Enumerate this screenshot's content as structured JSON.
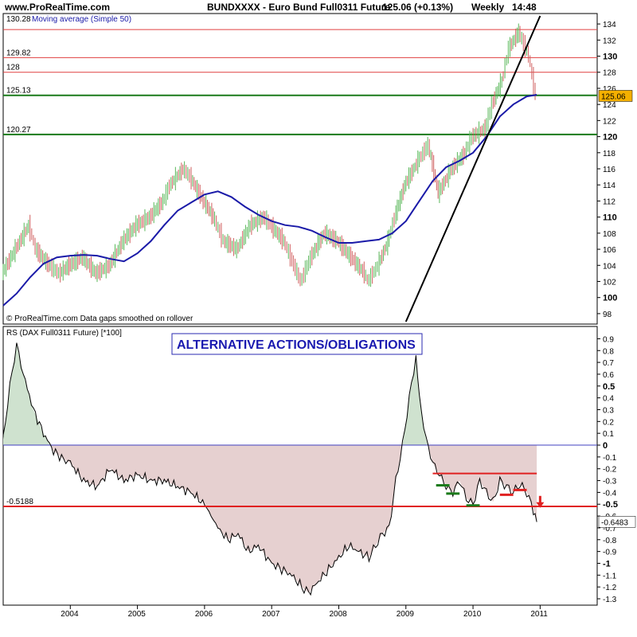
{
  "header": {
    "site": "www.ProRealTime.com",
    "title": "BUNDXXXX - Euro Bund Full0311 Future",
    "quote": "125.06 (+0.13%)",
    "period": "Weekly",
    "time": "14:48"
  },
  "chart_data": [
    {
      "type": "line",
      "panel": "price",
      "subtitle_prefix": "130.28",
      "indicator_label": "Moving average (Simple 50)",
      "footer_note": "© ProRealTime.com Data gaps smoothed on rollover",
      "ylim": [
        97,
        135
      ],
      "y_ticks": [
        98,
        100,
        102,
        104,
        106,
        108,
        110,
        112,
        114,
        116,
        118,
        120,
        122,
        124,
        126,
        128,
        130,
        132,
        134
      ],
      "y_ticks_bold": [
        100,
        110,
        120,
        130
      ],
      "current_price": "125.06",
      "hlines": [
        {
          "value": 133.3,
          "label": "",
          "color": "#e04040",
          "width": 1
        },
        {
          "value": 129.82,
          "label": "129.82",
          "color": "#e04040",
          "width": 1
        },
        {
          "value": 128,
          "label": "128",
          "color": "#e04040",
          "width": 1
        },
        {
          "value": 125.13,
          "label": "125.13",
          "color": "#1a7a1a",
          "width": 2
        },
        {
          "value": 120.27,
          "label": "120.27",
          "color": "#1a7a1a",
          "width": 2
        }
      ],
      "trendline": {
        "points": [
          [
            2009.0,
            97
          ],
          [
            2011.0,
            135
          ]
        ],
        "color": "#000000"
      },
      "series": [
        {
          "kind": "price",
          "color_up": "#5ab85a",
          "color_down": "#d06060",
          "x": [
            2003.0,
            2003.2,
            2003.4,
            2003.5,
            2003.7,
            2003.85,
            2004.0,
            2004.2,
            2004.4,
            2004.6,
            2004.8,
            2005.0,
            2005.2,
            2005.4,
            2005.5,
            2005.7,
            2005.8,
            2006.0,
            2006.15,
            2006.3,
            2006.5,
            2006.7,
            2006.9,
            2007.0,
            2007.2,
            2007.35,
            2007.45,
            2007.6,
            2007.8,
            2008.0,
            2008.2,
            2008.4,
            2008.45,
            2008.6,
            2008.75,
            2008.85,
            2009.0,
            2009.2,
            2009.35,
            2009.5,
            2009.7,
            2009.9,
            2010.0,
            2010.2,
            2010.3,
            2010.45,
            2010.55,
            2010.7,
            2010.85,
            2010.95
          ],
          "values": [
            103,
            106,
            109,
            106,
            104,
            103,
            104,
            105,
            103,
            104,
            107,
            109,
            110,
            112,
            114,
            116,
            115,
            112,
            110,
            107,
            106,
            109,
            110,
            109,
            107,
            104,
            102,
            105,
            108,
            107,
            105,
            103,
            102,
            104,
            107,
            110,
            114,
            117,
            119,
            113,
            116,
            118,
            120,
            121,
            124,
            127,
            131,
            133,
            130,
            125
          ]
        },
        {
          "kind": "ma",
          "name": "Moving average (Simple 50)",
          "color": "#1a1aa8",
          "x": [
            2003.0,
            2003.2,
            2003.4,
            2003.6,
            2003.8,
            2004.0,
            2004.2,
            2004.4,
            2004.6,
            2004.8,
            2005.0,
            2005.2,
            2005.4,
            2005.6,
            2005.8,
            2006.0,
            2006.2,
            2006.4,
            2006.6,
            2006.8,
            2007.0,
            2007.2,
            2007.4,
            2007.6,
            2007.8,
            2008.0,
            2008.2,
            2008.4,
            2008.6,
            2008.8,
            2009.0,
            2009.2,
            2009.4,
            2009.6,
            2009.8,
            2010.0,
            2010.2,
            2010.4,
            2010.6,
            2010.8,
            2010.95
          ],
          "values": [
            99,
            100.5,
            102.5,
            104.2,
            105,
            105.2,
            105.3,
            105.2,
            104.8,
            104.5,
            105.5,
            107,
            109,
            110.8,
            111.8,
            112.8,
            113.2,
            112.5,
            111.3,
            110.3,
            109.5,
            109,
            108.8,
            108.3,
            107.5,
            106.8,
            106.8,
            107,
            107.2,
            108,
            109.5,
            112,
            114.5,
            116.2,
            117,
            118,
            120,
            122.5,
            124,
            125,
            125.2
          ]
        }
      ]
    },
    {
      "type": "area",
      "panel": "relative-strength",
      "subtitle": "RS (DAX Full0311 Future) [*100]",
      "annotation": "ALTERNATIVE ACTIONS/OBLIGATIONS",
      "ylim": [
        -1.3,
        0.95
      ],
      "y_ticks": [
        0.9,
        0.8,
        0.7,
        0.6,
        0.5,
        0.4,
        0.3,
        0.2,
        0.1,
        0,
        -0.1,
        -0.2,
        -0.3,
        -0.4,
        -0.5,
        -0.6,
        -0.7,
        -0.8,
        -0.9,
        -1,
        -1.1,
        -1.2,
        -1.3
      ],
      "y_ticks_bold": [
        0.5,
        0,
        -0.5,
        -1
      ],
      "zero_line_color": "#4040c0",
      "level_line": {
        "value": -0.5188,
        "label": "-0.5188",
        "color": "#e02020"
      },
      "current_value": "-0.6483",
      "resistance": {
        "x": [
          2009.4,
          2010.95
        ],
        "value": -0.24,
        "color": "#e02020"
      },
      "supports_green": [
        {
          "x": [
            2009.45,
            2009.65
          ],
          "value": -0.34
        },
        {
          "x": [
            2009.6,
            2009.8
          ],
          "value": -0.41
        },
        {
          "x": [
            2009.9,
            2010.1
          ],
          "value": -0.51
        }
      ],
      "supports_red": [
        {
          "x": [
            2010.4,
            2010.6
          ],
          "value": -0.42
        },
        {
          "x": [
            2010.6,
            2010.8
          ],
          "value": -0.38
        }
      ],
      "arrow": {
        "x": 2011.0,
        "value": -0.47,
        "color": "#e02020"
      },
      "pos_fill": "#cfe2cf",
      "neg_fill": "#e6d0d0",
      "x_ticks": [
        "2004",
        "2005",
        "2006",
        "2007",
        "2008",
        "2009",
        "2010",
        "2011"
      ],
      "x_tick_values": [
        2004,
        2005,
        2006,
        2007,
        2008,
        2009,
        2010,
        2011
      ],
      "x": [
        2003.0,
        2003.1,
        2003.2,
        2003.3,
        2003.45,
        2003.6,
        2003.75,
        2003.9,
        2004.0,
        2004.2,
        2004.4,
        2004.6,
        2004.8,
        2005.0,
        2005.2,
        2005.4,
        2005.6,
        2005.8,
        2006.0,
        2006.1,
        2006.2,
        2006.35,
        2006.5,
        2006.65,
        2006.8,
        2007.0,
        2007.15,
        2007.3,
        2007.45,
        2007.55,
        2007.7,
        2007.85,
        2008.0,
        2008.15,
        2008.3,
        2008.45,
        2008.55,
        2008.65,
        2008.75,
        2008.85,
        2008.95,
        2009.05,
        2009.15,
        2009.2,
        2009.3,
        2009.4,
        2009.5,
        2009.6,
        2009.7,
        2009.8,
        2009.9,
        2010.0,
        2010.1,
        2010.2,
        2010.3,
        2010.4,
        2010.5,
        2010.6,
        2010.7,
        2010.8,
        2010.9,
        2010.95
      ],
      "values": [
        0.05,
        0.5,
        0.85,
        0.6,
        0.3,
        0.1,
        -0.05,
        -0.12,
        -0.15,
        -0.3,
        -0.35,
        -0.2,
        -0.3,
        -0.25,
        -0.3,
        -0.3,
        -0.35,
        -0.4,
        -0.5,
        -0.6,
        -0.7,
        -0.8,
        -0.75,
        -0.9,
        -0.85,
        -1.0,
        -1.05,
        -1.1,
        -1.2,
        -1.25,
        -1.15,
        -1.05,
        -0.95,
        -0.85,
        -0.9,
        -0.95,
        -0.85,
        -0.75,
        -0.7,
        -0.3,
        0.0,
        0.4,
        0.75,
        0.4,
        0.05,
        -0.15,
        -0.25,
        -0.35,
        -0.4,
        -0.3,
        -0.45,
        -0.5,
        -0.3,
        -0.4,
        -0.48,
        -0.3,
        -0.35,
        -0.4,
        -0.33,
        -0.4,
        -0.55,
        -0.65
      ]
    }
  ]
}
